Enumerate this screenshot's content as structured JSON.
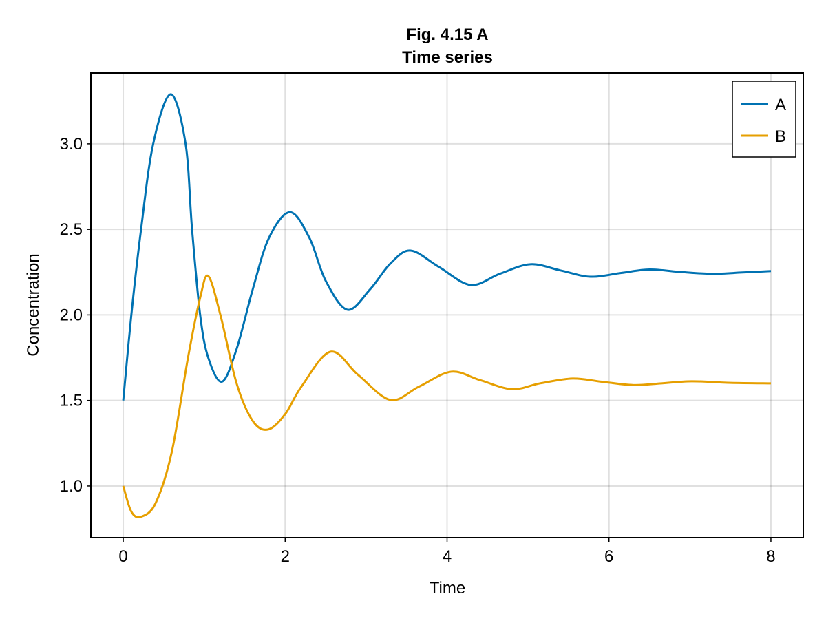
{
  "chart_data": {
    "type": "line",
    "title": "Fig. 4.15 A",
    "subtitle": "Time series",
    "xlabel": "Time",
    "ylabel": "Concentration",
    "xlim": [
      -0.4,
      8.4
    ],
    "ylim": [
      0.698,
      3.414
    ],
    "xticks": [
      0,
      2,
      4,
      6,
      8
    ],
    "xtick_labels": [
      "0",
      "2",
      "4",
      "6",
      "8"
    ],
    "yticks": [
      1.0,
      1.5,
      2.0,
      2.5,
      3.0
    ],
    "ytick_labels": [
      "1.0",
      "1.5",
      "2.0",
      "2.5",
      "3.0"
    ],
    "grid": true,
    "legend_position": "top-right",
    "series": [
      {
        "name": "A",
        "color": "#0072b2",
        "points": [
          [
            0,
            1.5
          ],
          [
            0.1,
            2.0
          ],
          [
            0.22,
            2.5
          ],
          [
            0.37,
            3.0
          ],
          [
            0.587,
            3.29
          ],
          [
            0.77,
            3.0
          ],
          [
            0.85,
            2.5
          ],
          [
            0.95,
            2.0
          ],
          [
            1.05,
            1.75
          ],
          [
            1.22,
            1.61
          ],
          [
            1.4,
            1.8
          ],
          [
            1.6,
            2.15
          ],
          [
            1.8,
            2.45
          ],
          [
            2.06,
            2.6
          ],
          [
            2.3,
            2.45
          ],
          [
            2.5,
            2.2
          ],
          [
            2.77,
            2.03
          ],
          [
            3.05,
            2.15
          ],
          [
            3.3,
            2.3
          ],
          [
            3.55,
            2.376
          ],
          [
            3.9,
            2.28
          ],
          [
            4.29,
            2.175
          ],
          [
            4.65,
            2.24
          ],
          [
            5.03,
            2.296
          ],
          [
            5.4,
            2.26
          ],
          [
            5.77,
            2.223
          ],
          [
            6.15,
            2.245
          ],
          [
            6.5,
            2.265
          ],
          [
            6.9,
            2.25
          ],
          [
            7.28,
            2.24
          ],
          [
            7.65,
            2.248
          ],
          [
            8,
            2.256
          ]
        ]
      },
      {
        "name": "B",
        "color": "#e69f00",
        "points": [
          [
            0,
            1.0
          ],
          [
            0.1,
            0.85
          ],
          [
            0.22,
            0.82
          ],
          [
            0.4,
            0.9
          ],
          [
            0.6,
            1.2
          ],
          [
            0.8,
            1.75
          ],
          [
            0.95,
            2.1
          ],
          [
            1.05,
            2.227
          ],
          [
            1.2,
            2.0
          ],
          [
            1.4,
            1.6
          ],
          [
            1.6,
            1.38
          ],
          [
            1.79,
            1.33
          ],
          [
            2.0,
            1.42
          ],
          [
            2.2,
            1.58
          ],
          [
            2.56,
            1.785
          ],
          [
            2.9,
            1.65
          ],
          [
            3.3,
            1.503
          ],
          [
            3.65,
            1.58
          ],
          [
            4.05,
            1.668
          ],
          [
            4.4,
            1.62
          ],
          [
            4.8,
            1.566
          ],
          [
            5.15,
            1.6
          ],
          [
            5.55,
            1.628
          ],
          [
            5.9,
            1.61
          ],
          [
            6.3,
            1.59
          ],
          [
            6.65,
            1.6
          ],
          [
            7.02,
            1.612
          ],
          [
            7.5,
            1.603
          ],
          [
            8,
            1.6
          ]
        ]
      }
    ]
  }
}
